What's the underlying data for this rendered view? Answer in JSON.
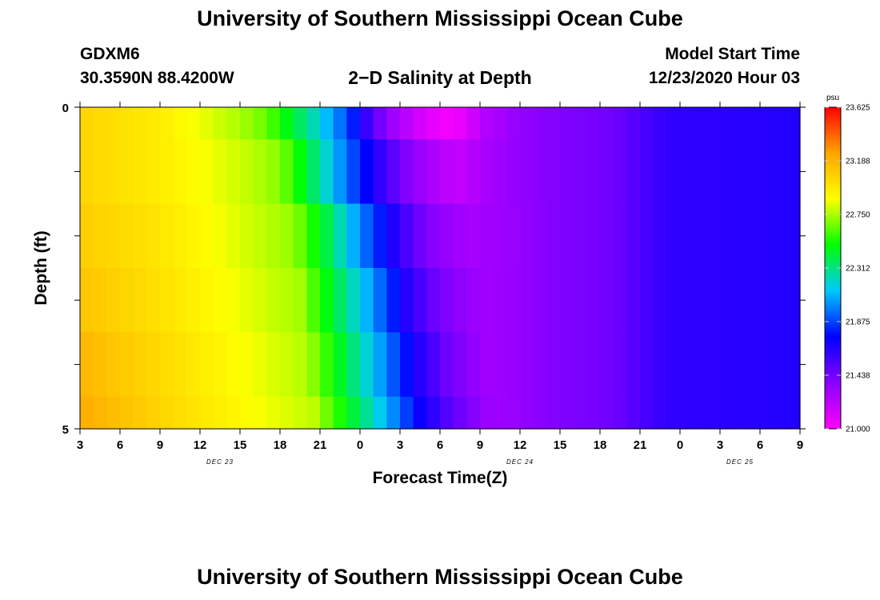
{
  "header": {
    "title": "University of Southern Mississippi Ocean Cube",
    "station_id": "GDXM6",
    "coordinates": "30.3590N 88.4200W",
    "subtitle": "2−D Salinity at Depth",
    "model_start_label": "Model Start Time",
    "model_start_time": "12/23/2020 Hour 03"
  },
  "footer": {
    "title": "University of Southern Mississippi Ocean Cube"
  },
  "chart_data": {
    "type": "heatmap",
    "title": "2−D Salinity at Depth",
    "xlabel": "Forecast Time(Z)",
    "ylabel": "Depth (ft)",
    "units": "psu",
    "x_ticks": [
      "3",
      "6",
      "9",
      "12",
      "15",
      "18",
      "21",
      "0",
      "3",
      "6",
      "9",
      "12",
      "15",
      "18",
      "21",
      "0",
      "3",
      "6",
      "9"
    ],
    "x_range_hours": [
      0,
      54
    ],
    "date_labels": [
      {
        "text": "DEC 23",
        "hour": 10.5
      },
      {
        "text": "DEC 24",
        "hour": 33
      },
      {
        "text": "DEC 25",
        "hour": 49.5
      }
    ],
    "y_ticks": [
      "0",
      "5"
    ],
    "y_range": [
      0,
      5
    ],
    "colorbar": {
      "min": 21.0,
      "max": 23.625,
      "tick_labels": [
        "23.625",
        "23.188",
        "22.750",
        "22.312",
        "21.875",
        "21.438",
        "21.000"
      ],
      "colors": [
        "#ff00ff",
        "#8a00ff",
        "#0000ff",
        "#00c8ff",
        "#00ff00",
        "#ffff00",
        "#ffa500",
        "#ff0000"
      ]
    },
    "layers": [
      {
        "depth_top": 0,
        "depth_bottom": 0.5,
        "profile": [
          [
            0,
            23.05
          ],
          [
            6,
            22.95
          ],
          [
            12,
            22.75
          ],
          [
            14,
            22.65
          ],
          [
            17,
            22.3
          ],
          [
            20,
            21.9
          ],
          [
            22,
            21.5
          ],
          [
            23.5,
            21.3
          ],
          [
            26,
            21.1
          ],
          [
            28,
            21.02
          ],
          [
            30.5,
            21.25
          ],
          [
            33,
            21.35
          ],
          [
            36,
            21.4
          ],
          [
            40,
            21.45
          ],
          [
            44,
            21.62
          ],
          [
            54,
            21.66
          ]
        ]
      },
      {
        "depth_top": 0.5,
        "depth_bottom": 1.5,
        "profile": [
          [
            0,
            23.05
          ],
          [
            6,
            22.95
          ],
          [
            12,
            22.8
          ],
          [
            15,
            22.7
          ],
          [
            17.5,
            22.35
          ],
          [
            20,
            21.95
          ],
          [
            23,
            21.55
          ],
          [
            25,
            21.35
          ],
          [
            28,
            21.18
          ],
          [
            30.5,
            21.28
          ],
          [
            33,
            21.35
          ],
          [
            36,
            21.4
          ],
          [
            40,
            21.45
          ],
          [
            44,
            21.62
          ],
          [
            54,
            21.66
          ]
        ]
      },
      {
        "depth_top": 1.5,
        "depth_bottom": 2.5,
        "profile": [
          [
            0,
            23.08
          ],
          [
            6,
            22.98
          ],
          [
            12,
            22.82
          ],
          [
            16,
            22.72
          ],
          [
            18.5,
            22.4
          ],
          [
            21,
            22.0
          ],
          [
            24,
            21.6
          ],
          [
            26,
            21.4
          ],
          [
            29,
            21.28
          ],
          [
            32,
            21.32
          ],
          [
            36,
            21.4
          ],
          [
            40,
            21.45
          ],
          [
            44,
            21.62
          ],
          [
            54,
            21.66
          ]
        ]
      },
      {
        "depth_top": 2.5,
        "depth_bottom": 3.5,
        "profile": [
          [
            0,
            23.12
          ],
          [
            6,
            23.0
          ],
          [
            12,
            22.85
          ],
          [
            16.5,
            22.74
          ],
          [
            19,
            22.42
          ],
          [
            22,
            22.02
          ],
          [
            24.5,
            21.65
          ],
          [
            27,
            21.42
          ],
          [
            30,
            21.3
          ],
          [
            33,
            21.34
          ],
          [
            36,
            21.4
          ],
          [
            40,
            21.45
          ],
          [
            44,
            21.62
          ],
          [
            54,
            21.66
          ]
        ]
      },
      {
        "depth_top": 3.5,
        "depth_bottom": 4.5,
        "profile": [
          [
            0,
            23.18
          ],
          [
            6,
            23.03
          ],
          [
            12,
            22.88
          ],
          [
            17,
            22.76
          ],
          [
            19.5,
            22.45
          ],
          [
            22.5,
            22.05
          ],
          [
            25,
            21.7
          ],
          [
            27.5,
            21.45
          ],
          [
            30.5,
            21.3
          ],
          [
            33,
            21.34
          ],
          [
            36,
            21.4
          ],
          [
            40,
            21.45
          ],
          [
            44,
            21.62
          ],
          [
            54,
            21.66
          ]
        ]
      },
      {
        "depth_top": 4.5,
        "depth_bottom": 5,
        "profile": [
          [
            0,
            23.22
          ],
          [
            6,
            23.05
          ],
          [
            12,
            22.9
          ],
          [
            17.5,
            22.78
          ],
          [
            20,
            22.48
          ],
          [
            23,
            22.08
          ],
          [
            25.5,
            21.72
          ],
          [
            28,
            21.48
          ],
          [
            31,
            21.3
          ],
          [
            33,
            21.34
          ],
          [
            36,
            21.4
          ],
          [
            40,
            21.45
          ],
          [
            44,
            21.62
          ],
          [
            54,
            21.66
          ]
        ]
      }
    ]
  }
}
